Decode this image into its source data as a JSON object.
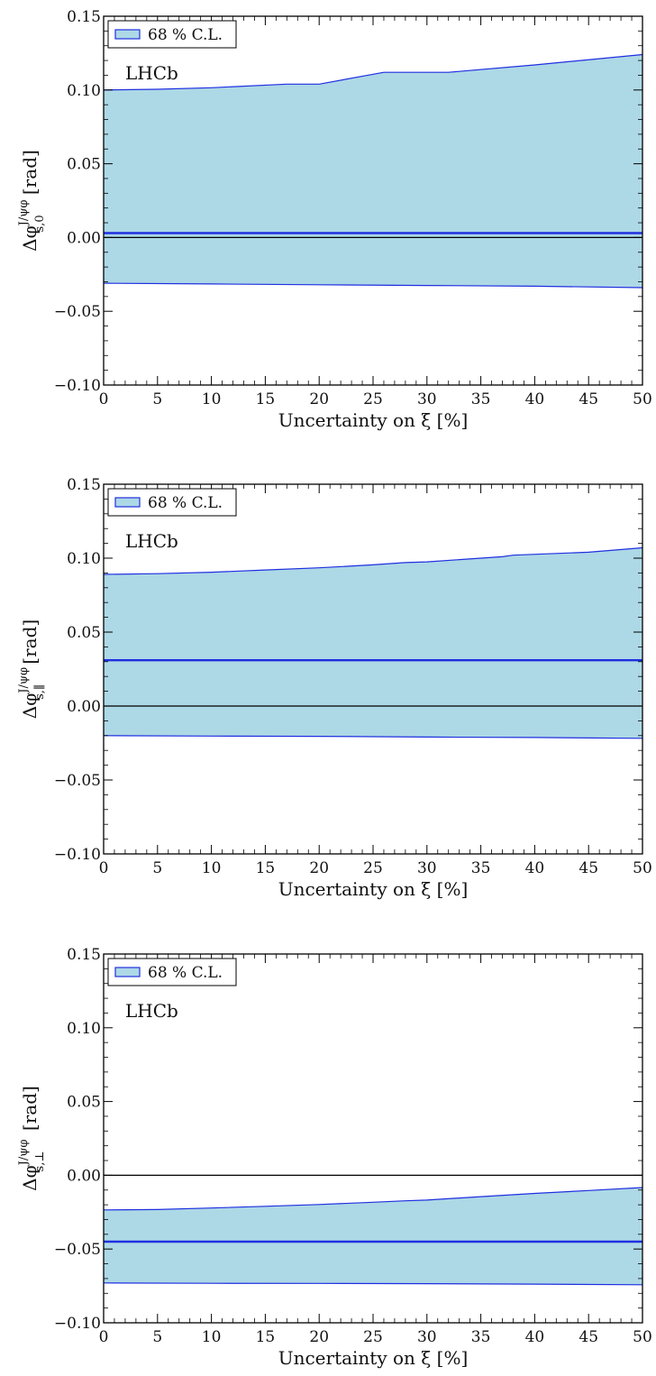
{
  "chart_data": [
    {
      "type": "area",
      "panel_id": "p0",
      "xlabel": "Uncertainty on ξ [%]",
      "ylabel_prefix": "Δφ",
      "ylabel_sup": "J/ψφ",
      "ylabel_sub": "s,0",
      "ylabel_suffix": " [rad]",
      "xlim": [
        0,
        50
      ],
      "ylim": [
        -0.1,
        0.15
      ],
      "xticks": [
        "0",
        "5",
        "10",
        "15",
        "20",
        "25",
        "30",
        "35",
        "40",
        "45",
        "50"
      ],
      "yticks": [
        "−0.10",
        "−0.05",
        "0.00",
        "0.05",
        "0.10",
        "0.15"
      ],
      "legend": {
        "label": "68 % C.L.",
        "placement": "top-left"
      },
      "annotation": "LHCb",
      "zero_line": 0.0,
      "central": [
        [
          0,
          0.003
        ],
        [
          50,
          0.003
        ]
      ],
      "upper": [
        [
          0,
          0.1
        ],
        [
          5,
          0.1005
        ],
        [
          10,
          0.1015
        ],
        [
          17,
          0.104
        ],
        [
          20,
          0.104
        ],
        [
          26,
          0.112
        ],
        [
          32,
          0.112
        ],
        [
          40,
          0.117
        ],
        [
          50,
          0.124
        ]
      ],
      "lower": [
        [
          0,
          -0.031
        ],
        [
          10,
          -0.0315
        ],
        [
          20,
          -0.032
        ],
        [
          30,
          -0.0325
        ],
        [
          40,
          -0.033
        ],
        [
          50,
          -0.034
        ]
      ]
    },
    {
      "type": "area",
      "panel_id": "p1",
      "xlabel": "Uncertainty on ξ [%]",
      "ylabel_prefix": "Δφ",
      "ylabel_sup": "J/ψφ",
      "ylabel_sub": "s,∥",
      "ylabel_suffix": " [rad]",
      "xlim": [
        0,
        50
      ],
      "ylim": [
        -0.1,
        0.15
      ],
      "xticks": [
        "0",
        "5",
        "10",
        "15",
        "20",
        "25",
        "30",
        "35",
        "40",
        "45",
        "50"
      ],
      "yticks": [
        "−0.10",
        "−0.05",
        "0.00",
        "0.05",
        "0.10",
        "0.15"
      ],
      "legend": {
        "label": "68 % C.L.",
        "placement": "top-left"
      },
      "annotation": "LHCb",
      "zero_line": 0.0,
      "central": [
        [
          0,
          0.031
        ],
        [
          50,
          0.031
        ]
      ],
      "upper": [
        [
          0,
          0.089
        ],
        [
          5,
          0.0895
        ],
        [
          10,
          0.0905
        ],
        [
          15,
          0.092
        ],
        [
          20,
          0.0935
        ],
        [
          25,
          0.0955
        ],
        [
          28,
          0.097
        ],
        [
          30,
          0.0975
        ],
        [
          37,
          0.101
        ],
        [
          38,
          0.102
        ],
        [
          45,
          0.104
        ],
        [
          50,
          0.107
        ]
      ],
      "lower": [
        [
          0,
          -0.02
        ],
        [
          10,
          -0.0203
        ],
        [
          20,
          -0.0205
        ],
        [
          30,
          -0.021
        ],
        [
          40,
          -0.0213
        ],
        [
          50,
          -0.0218
        ]
      ]
    },
    {
      "type": "area",
      "panel_id": "p2",
      "xlabel": "Uncertainty on ξ [%]",
      "ylabel_prefix": "Δφ",
      "ylabel_sup": "J/ψφ",
      "ylabel_sub": "s,⊥",
      "ylabel_suffix": " [rad]",
      "xlim": [
        0,
        50
      ],
      "ylim": [
        -0.1,
        0.15
      ],
      "xticks": [
        "0",
        "5",
        "10",
        "15",
        "20",
        "25",
        "30",
        "35",
        "40",
        "45",
        "50"
      ],
      "yticks": [
        "−0.10",
        "−0.05",
        "0.00",
        "0.05",
        "0.10",
        "0.15"
      ],
      "legend": {
        "label": "68 % C.L.",
        "placement": "top-left"
      },
      "annotation": "LHCb",
      "zero_line": 0.0,
      "central": [
        [
          0,
          -0.045
        ],
        [
          50,
          -0.045
        ]
      ],
      "upper": [
        [
          0,
          -0.0235
        ],
        [
          5,
          -0.0232
        ],
        [
          10,
          -0.0222
        ],
        [
          15,
          -0.021
        ],
        [
          20,
          -0.0198
        ],
        [
          25,
          -0.0183
        ],
        [
          28,
          -0.0173
        ],
        [
          30,
          -0.0168
        ],
        [
          35,
          -0.0145
        ],
        [
          40,
          -0.0123
        ],
        [
          45,
          -0.0103
        ],
        [
          50,
          -0.0083
        ]
      ],
      "lower": [
        [
          0,
          -0.073
        ],
        [
          10,
          -0.0732
        ],
        [
          20,
          -0.0733
        ],
        [
          30,
          -0.0735
        ],
        [
          40,
          -0.0738
        ],
        [
          50,
          -0.0742
        ]
      ]
    }
  ],
  "style": {
    "band_fill": "#add8e6",
    "band_edge": "#1f2fe0",
    "central_line": "#1f2fe0",
    "zero_line": "#000000",
    "axes": "#000000"
  }
}
